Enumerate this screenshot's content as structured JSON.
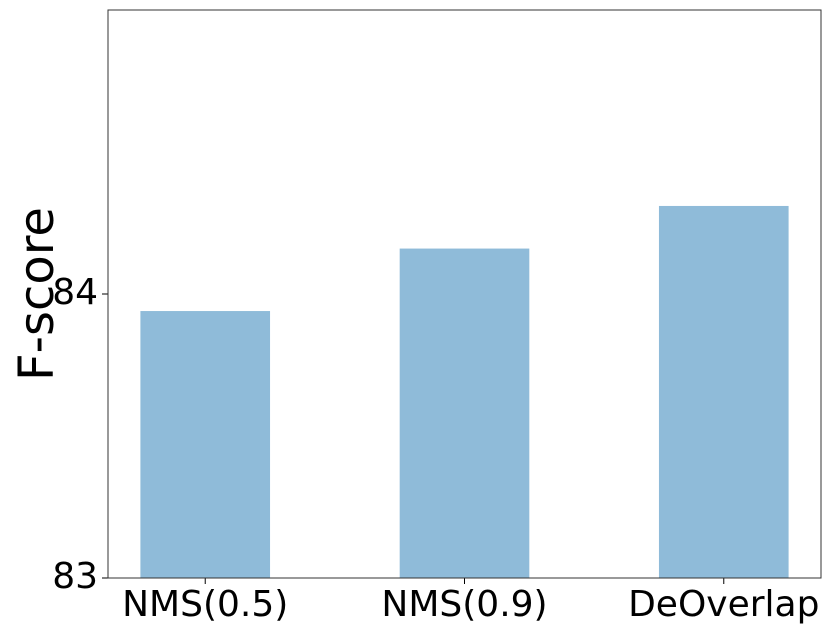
{
  "chart_data": {
    "type": "bar",
    "y_label": "F-score",
    "categories": [
      "NMS(0.5)",
      "NMS(0.9)",
      "DeOverlap"
    ],
    "values": [
      83.94,
      84.16,
      84.31
    ],
    "color": "#8fbbd9",
    "ylim": [
      83,
      85
    ],
    "yticks": [
      83,
      84
    ],
    "grid": false
  }
}
